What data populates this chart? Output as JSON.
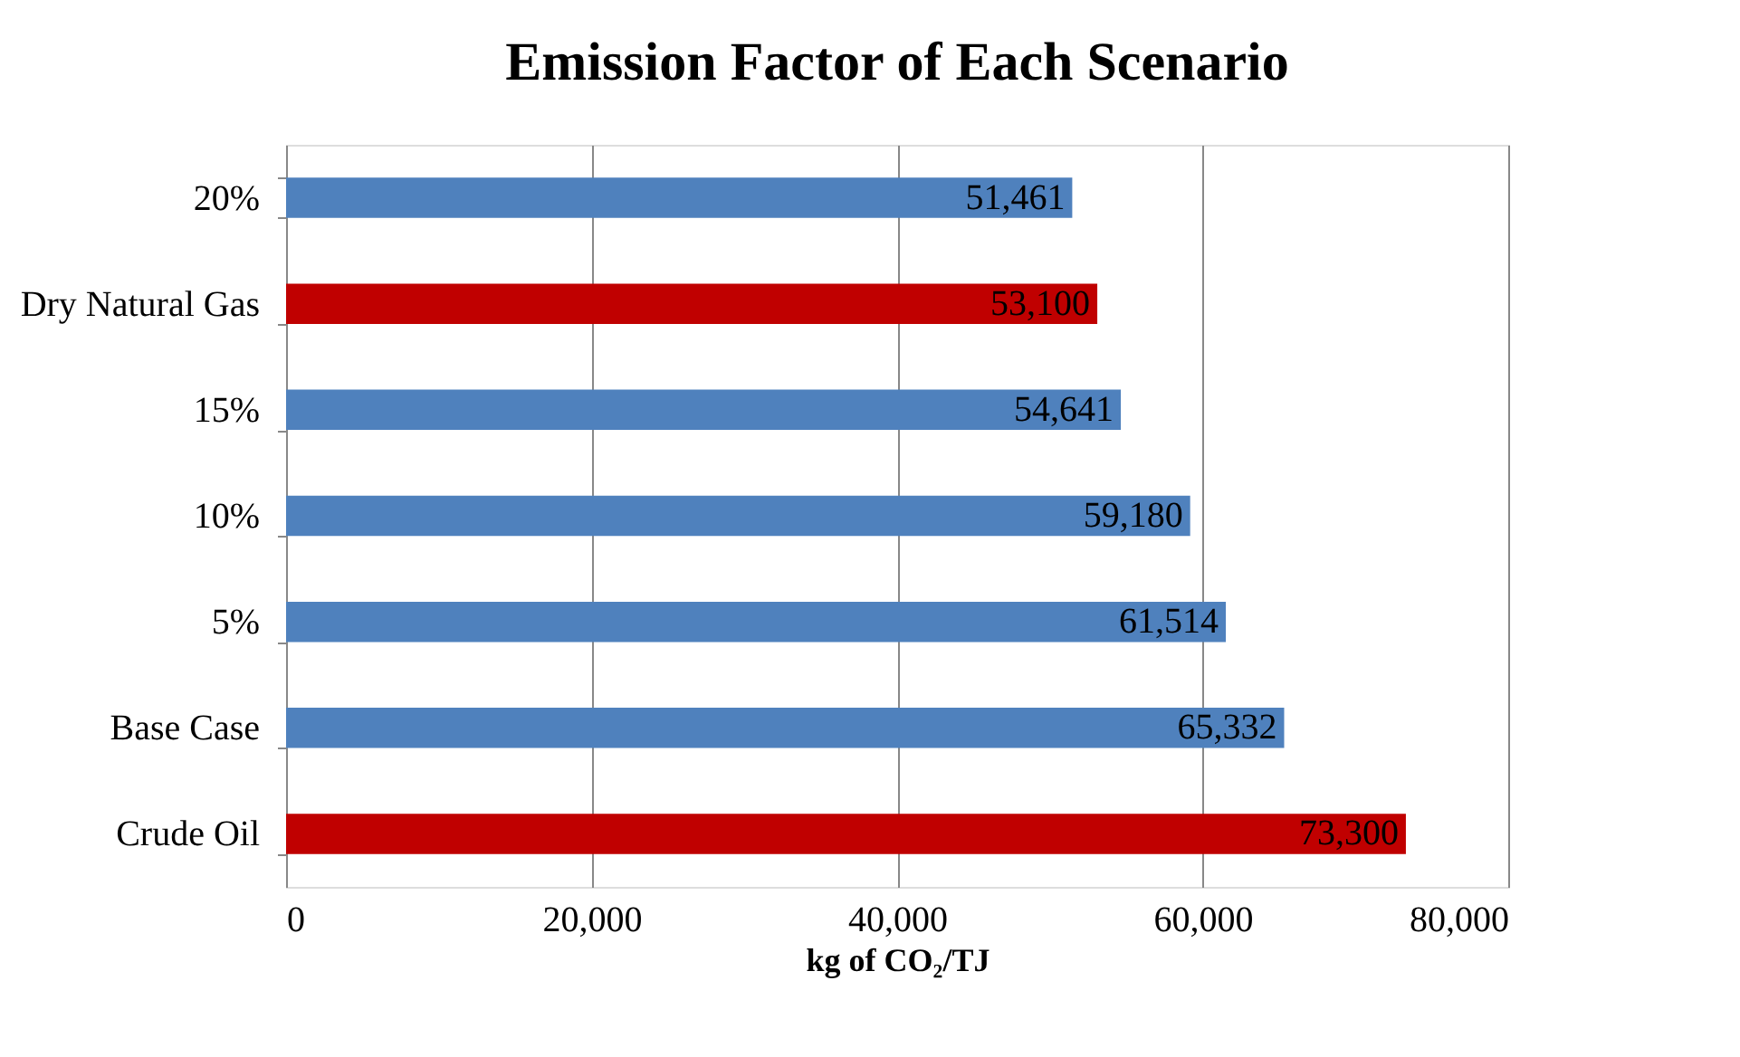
{
  "chart_data": {
    "type": "bar",
    "orientation": "horizontal",
    "title": "Emission Factor of Each Scenario",
    "xlabel": "kg of CO₂/TJ",
    "categories": [
      "20%",
      "Dry Natural Gas",
      "15%",
      "10%",
      "5%",
      "Base Case",
      "Crude Oil"
    ],
    "values": [
      51461,
      53100,
      54641,
      59180,
      61514,
      65332,
      73300
    ],
    "value_labels": [
      "51,461",
      "53,100",
      "54,641",
      "59,180",
      "61,514",
      "65,332",
      "73,300"
    ],
    "colors": [
      "#4f81bd",
      "#c00000",
      "#4f81bd",
      "#4f81bd",
      "#4f81bd",
      "#4f81bd",
      "#c00000"
    ],
    "xlim": [
      0,
      80000
    ],
    "xticks": [
      0,
      {
        "value": 20000,
        "label": "20,000"
      },
      {
        "value": 40000,
        "label": "40,000"
      },
      {
        "value": 60000,
        "label": "60,000"
      },
      {
        "value": 80000,
        "label": "80,000"
      }
    ],
    "grid": "x"
  }
}
